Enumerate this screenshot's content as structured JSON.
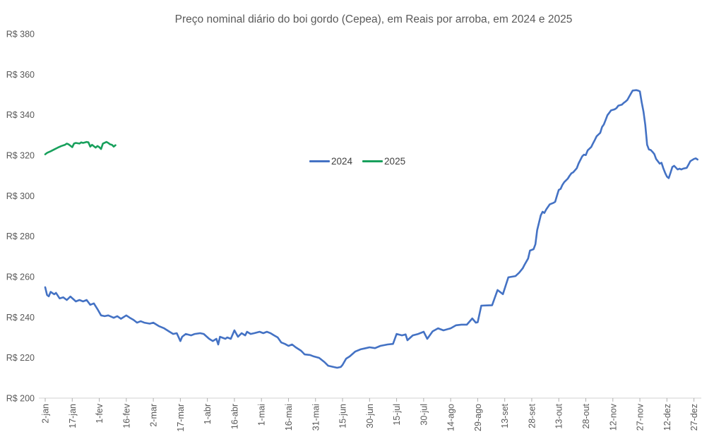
{
  "title": "Preço nominal diário do boi gordo (Cepea), em Reais por arroba, em 2024 e 2025",
  "colors": {
    "series_2024": "#4472c4",
    "series_2025": "#18a05c",
    "title_text": "#595959",
    "axis_text": "#595959",
    "axis_line": "#d0d0d0",
    "tick_mark": "#aeaeae",
    "legend_text": "#3f3f3f",
    "background": "#ffffff"
  },
  "legend": {
    "items": [
      {
        "label": "2024",
        "color": "#4472c4"
      },
      {
        "label": "2025",
        "color": "#18a05c"
      }
    ]
  },
  "chart_data": {
    "type": "line",
    "title": "Preço nominal diário do boi gordo (Cepea), em Reais por arroba, em 2024 e 2025",
    "xlabel": "",
    "ylabel": "",
    "grid": false,
    "legend_position": "center",
    "ylim": [
      200,
      380
    ],
    "y_axis": {
      "tick_values": [
        380,
        360,
        340,
        320,
        300,
        280,
        260,
        240,
        220,
        200
      ],
      "tick_labels": [
        "R$ 380",
        "R$ 360",
        "R$ 340",
        "R$ 320",
        "R$ 300",
        "R$ 280",
        "R$ 260",
        "R$ 240",
        "R$ 220",
        "R$ 200"
      ]
    },
    "x_axis": {
      "unit": "days since 2-jan",
      "span_days": 360,
      "tick_interval_days": 15,
      "tick_labels": [
        "2-jan",
        "17-jan",
        "1-fev",
        "16-fev",
        "2-mar",
        "17-mar",
        "1-abr",
        "16-abr",
        "1-mai",
        "16-mai",
        "31-mai",
        "15-jun",
        "30-jun",
        "15-jul",
        "30-jul",
        "14-ago",
        "29-ago",
        "13-set",
        "28-set",
        "13-out",
        "28-out",
        "12-nov",
        "27-nov",
        "12-dez",
        "27-dez"
      ]
    },
    "series": [
      {
        "name": "2024",
        "color": "#4472c4",
        "points": [
          [
            0,
            254.8
          ],
          [
            1,
            251.0
          ],
          [
            2,
            250.3
          ],
          [
            3,
            252.5
          ],
          [
            5,
            251.3
          ],
          [
            6,
            252.0
          ],
          [
            8,
            249.3
          ],
          [
            10,
            249.8
          ],
          [
            12,
            248.5
          ],
          [
            14,
            250.2
          ],
          [
            17,
            247.8
          ],
          [
            19,
            248.5
          ],
          [
            21,
            247.8
          ],
          [
            23,
            248.5
          ],
          [
            25,
            246.1
          ],
          [
            27,
            246.8
          ],
          [
            29,
            244.0
          ],
          [
            31,
            240.9
          ],
          [
            33,
            240.5
          ],
          [
            35,
            240.9
          ],
          [
            38,
            239.7
          ],
          [
            40,
            240.5
          ],
          [
            42,
            239.2
          ],
          [
            45,
            240.9
          ],
          [
            47,
            239.7
          ],
          [
            49,
            238.7
          ],
          [
            51,
            237.3
          ],
          [
            53,
            238.0
          ],
          [
            55,
            237.3
          ],
          [
            58,
            236.8
          ],
          [
            60,
            237.3
          ],
          [
            63,
            235.6
          ],
          [
            66,
            234.5
          ],
          [
            69,
            232.8
          ],
          [
            71,
            231.7
          ],
          [
            73,
            232.1
          ],
          [
            75,
            228.2
          ],
          [
            76,
            230.3
          ],
          [
            78,
            231.7
          ],
          [
            81,
            231.0
          ],
          [
            83,
            231.7
          ],
          [
            86,
            232.1
          ],
          [
            88,
            231.7
          ],
          [
            91,
            229.3
          ],
          [
            93,
            228.2
          ],
          [
            95,
            229.3
          ],
          [
            96,
            226.5
          ],
          [
            97,
            230.3
          ],
          [
            100,
            229.3
          ],
          [
            101,
            230.0
          ],
          [
            103,
            229.3
          ],
          [
            105,
            233.5
          ],
          [
            107,
            230.3
          ],
          [
            109,
            232.1
          ],
          [
            111,
            231.0
          ],
          [
            112,
            232.8
          ],
          [
            114,
            231.7
          ],
          [
            116,
            232.1
          ],
          [
            119,
            232.8
          ],
          [
            121,
            232.1
          ],
          [
            123,
            232.8
          ],
          [
            125,
            232.1
          ],
          [
            127,
            231.0
          ],
          [
            129,
            230.0
          ],
          [
            131,
            227.5
          ],
          [
            133,
            226.8
          ],
          [
            135,
            225.8
          ],
          [
            137,
            226.5
          ],
          [
            139,
            225.1
          ],
          [
            142,
            223.4
          ],
          [
            144,
            221.6
          ],
          [
            147,
            221.3
          ],
          [
            149,
            220.6
          ],
          [
            152,
            219.9
          ],
          [
            155,
            217.8
          ],
          [
            157,
            216.0
          ],
          [
            160,
            215.4
          ],
          [
            162,
            215.0
          ],
          [
            164,
            215.4
          ],
          [
            165,
            216.4
          ],
          [
            167,
            219.5
          ],
          [
            169,
            220.6
          ],
          [
            172,
            223.0
          ],
          [
            175,
            224.1
          ],
          [
            178,
            224.7
          ],
          [
            180,
            225.1
          ],
          [
            183,
            224.7
          ],
          [
            186,
            225.8
          ],
          [
            190,
            226.5
          ],
          [
            193,
            226.8
          ],
          [
            195,
            231.7
          ],
          [
            198,
            231.0
          ],
          [
            200,
            231.5
          ],
          [
            201,
            228.6
          ],
          [
            204,
            231.0
          ],
          [
            207,
            231.7
          ],
          [
            210,
            232.8
          ],
          [
            212,
            229.3
          ],
          [
            215,
            233.0
          ],
          [
            218,
            234.5
          ],
          [
            221,
            233.5
          ],
          [
            225,
            234.5
          ],
          [
            228,
            236.0
          ],
          [
            231,
            236.3
          ],
          [
            234,
            236.3
          ],
          [
            237,
            239.4
          ],
          [
            239,
            237.3
          ],
          [
            240,
            237.5
          ],
          [
            242,
            245.7
          ],
          [
            245,
            245.8
          ],
          [
            248,
            245.9
          ],
          [
            251,
            253.4
          ],
          [
            254,
            251.4
          ],
          [
            257,
            259.7
          ],
          [
            261,
            260.3
          ],
          [
            263,
            262.0
          ],
          [
            265,
            264.2
          ],
          [
            266,
            265.9
          ],
          [
            268,
            269.0
          ],
          [
            269,
            272.9
          ],
          [
            271,
            273.6
          ],
          [
            272,
            276.0
          ],
          [
            273,
            283.0
          ],
          [
            275,
            290.3
          ],
          [
            276,
            292.1
          ],
          [
            277,
            291.5
          ],
          [
            278,
            293.2
          ],
          [
            280,
            295.8
          ],
          [
            282,
            296.5
          ],
          [
            283,
            297.0
          ],
          [
            284,
            300.1
          ],
          [
            285,
            302.9
          ],
          [
            286,
            303.4
          ],
          [
            287,
            305.3
          ],
          [
            288,
            306.7
          ],
          [
            290,
            308.5
          ],
          [
            291,
            309.9
          ],
          [
            292,
            311.1
          ],
          [
            293,
            311.6
          ],
          [
            295,
            313.6
          ],
          [
            296,
            316.0
          ],
          [
            298,
            319.5
          ],
          [
            299,
            320.3
          ],
          [
            300,
            320.1
          ],
          [
            301,
            322.4
          ],
          [
            303,
            324.1
          ],
          [
            304,
            325.9
          ],
          [
            305,
            327.6
          ],
          [
            306,
            329.4
          ],
          [
            308,
            331.1
          ],
          [
            309,
            334.0
          ],
          [
            310,
            335.2
          ],
          [
            311,
            337.5
          ],
          [
            312,
            339.8
          ],
          [
            313,
            341.0
          ],
          [
            314,
            342.2
          ],
          [
            316,
            342.7
          ],
          [
            317,
            343.3
          ],
          [
            318,
            344.5
          ],
          [
            320,
            345.0
          ],
          [
            321,
            345.9
          ],
          [
            322,
            346.5
          ],
          [
            323,
            347.3
          ],
          [
            325,
            350.5
          ],
          [
            326,
            352.0
          ],
          [
            328,
            352.2
          ],
          [
            329,
            352.0
          ],
          [
            330,
            351.6
          ],
          [
            331,
            346.2
          ],
          [
            332,
            341.5
          ],
          [
            333,
            335.0
          ],
          [
            334,
            325.2
          ],
          [
            335,
            322.9
          ],
          [
            336,
            322.6
          ],
          [
            337,
            321.7
          ],
          [
            338,
            320.6
          ],
          [
            339,
            318.2
          ],
          [
            341,
            315.9
          ],
          [
            342,
            316.3
          ],
          [
            343,
            313.6
          ],
          [
            344,
            311.3
          ],
          [
            345,
            309.5
          ],
          [
            346,
            308.7
          ],
          [
            347,
            311.3
          ],
          [
            348,
            314.2
          ],
          [
            349,
            314.8
          ],
          [
            351,
            313.0
          ],
          [
            352,
            313.4
          ],
          [
            353,
            313.0
          ],
          [
            354,
            313.4
          ],
          [
            356,
            313.8
          ],
          [
            357,
            315.4
          ],
          [
            358,
            317.1
          ],
          [
            360,
            318.2
          ],
          [
            361,
            318.5
          ],
          [
            362,
            317.9
          ]
        ]
      },
      {
        "name": "2025",
        "color": "#18a05c",
        "points": [
          [
            0,
            320.5
          ],
          [
            1,
            321.2
          ],
          [
            3,
            322.0
          ],
          [
            5,
            322.9
          ],
          [
            7,
            323.8
          ],
          [
            9,
            324.6
          ],
          [
            11,
            325.2
          ],
          [
            12,
            325.8
          ],
          [
            13,
            325.4
          ],
          [
            15,
            324.0
          ],
          [
            16,
            325.8
          ],
          [
            17,
            326.1
          ],
          [
            19,
            325.8
          ],
          [
            20,
            326.4
          ],
          [
            21,
            326.1
          ],
          [
            23,
            326.6
          ],
          [
            24,
            326.4
          ],
          [
            25,
            324.3
          ],
          [
            26,
            325.2
          ],
          [
            28,
            323.8
          ],
          [
            29,
            324.6
          ],
          [
            30,
            324.0
          ],
          [
            31,
            323.1
          ],
          [
            32,
            325.8
          ],
          [
            34,
            326.6
          ],
          [
            35,
            326.1
          ],
          [
            36,
            325.4
          ],
          [
            37,
            325.2
          ],
          [
            38,
            324.3
          ],
          [
            39,
            325.0
          ]
        ]
      }
    ]
  }
}
